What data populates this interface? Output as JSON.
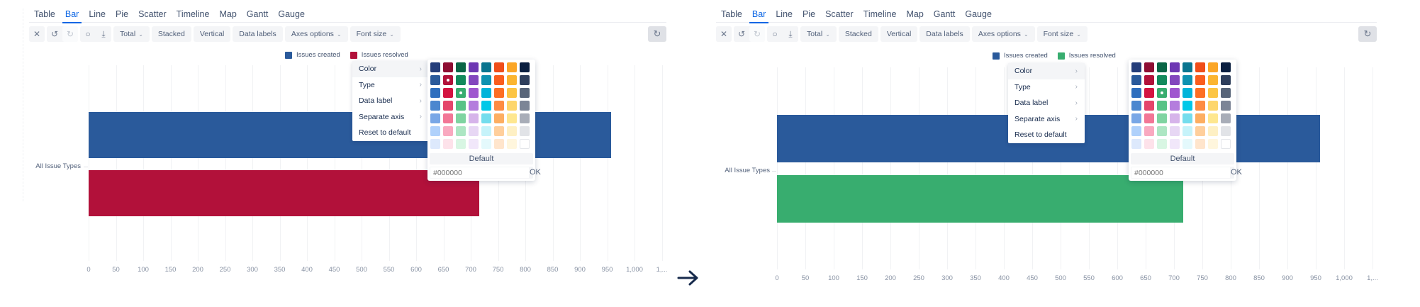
{
  "tabs": [
    "Table",
    "Bar",
    "Line",
    "Pie",
    "Scatter",
    "Timeline",
    "Map",
    "Gantt",
    "Gauge"
  ],
  "active_tab": "Bar",
  "toolbar": {
    "fullscreen_icon": "expand-icon",
    "undo_icon": "undo-icon",
    "redo_icon": "redo-icon",
    "comment_icon": "comment-icon",
    "download_icon": "download-icon",
    "total_label": "Total",
    "stacked_label": "Stacked",
    "vertical_label": "Vertical",
    "data_labels_label": "Data labels",
    "axes_options_label": "Axes options",
    "font_size_label": "Font size",
    "refresh_icon": "refresh-icon"
  },
  "context_menu": {
    "items": [
      {
        "label": "Color",
        "has_submenu": true
      },
      {
        "label": "Type",
        "has_submenu": true
      },
      {
        "label": "Data label",
        "has_submenu": true
      },
      {
        "label": "Separate axis",
        "has_submenu": true
      },
      {
        "label": "Reset to default",
        "has_submenu": false
      }
    ]
  },
  "color_picker": {
    "default_label": "Default",
    "hex_placeholder": "#000000",
    "ok_label": "OK",
    "palette": [
      [
        "#253e7a",
        "#8e0e33",
        "#0b6646",
        "#6e38b3",
        "#0a758f",
        "#f04e1a",
        "#fba627",
        "#0b1f40"
      ],
      [
        "#2a5a9b",
        "#b2113a",
        "#138a5c",
        "#8347be",
        "#0e92b1",
        "#fa5e1e",
        "#fbb530",
        "#2f3f5c"
      ],
      [
        "#2f6fbe",
        "#d31441",
        "#38ad6f",
        "#9f57cf",
        "#02b4da",
        "#fd6f24",
        "#fcc544",
        "#586579"
      ],
      [
        "#4b87cf",
        "#e4456b",
        "#58c386",
        "#b47ddd",
        "#00c8e8",
        "#fe8c42",
        "#fdd66c",
        "#7c8596"
      ],
      [
        "#79a7e6",
        "#f27696",
        "#7fd4a1",
        "#d6b4ea",
        "#74dded",
        "#fdae61",
        "#fee78f",
        "#a8adb8"
      ],
      [
        "#b0d1fb",
        "#f9a9c0",
        "#ade6c3",
        "#e7d7f4",
        "#c6f3fa",
        "#ffcf9c",
        "#fef0c4",
        "#e1e3e7"
      ],
      [
        "#dde9fc",
        "#fde2ea",
        "#d8f6e3",
        "#f1e7fa",
        "#e4f9fc",
        "#ffe5cc",
        "#fff6dd",
        "#ffffff"
      ]
    ]
  },
  "panels": [
    {
      "legend": [
        {
          "label": "Issues created",
          "color": "#2a5a9b"
        },
        {
          "label": "Issues resolved",
          "color": "#b2113a"
        }
      ],
      "selected_swatch": [
        1,
        1
      ],
      "hover_swatch": [
        2,
        2
      ]
    },
    {
      "legend": [
        {
          "label": "Issues created",
          "color": "#2a5a9b"
        },
        {
          "label": "Issues resolved",
          "color": "#38ad6f"
        }
      ],
      "selected_swatch": [
        2,
        2
      ],
      "hover_swatch": null
    }
  ],
  "transition_arrow_icon": "right-arrow-icon",
  "chart_data": [
    {
      "type": "bar",
      "orientation": "horizontal",
      "title": "",
      "categories": [
        "All Issue Types"
      ],
      "series": [
        {
          "name": "Issues created",
          "values": [
            957
          ],
          "color": "#2a5a9b"
        },
        {
          "name": "Issues resolved",
          "values": [
            716
          ],
          "color": "#b2113a"
        }
      ],
      "xlabel": "",
      "ylabel": "",
      "xlim": [
        0,
        1050
      ],
      "x_ticks": [
        "0",
        "50",
        "100",
        "150",
        "200",
        "250",
        "300",
        "350",
        "400",
        "450",
        "500",
        "550",
        "600",
        "650",
        "700",
        "750",
        "800",
        "850",
        "900",
        "950",
        "1,000",
        "1,..."
      ],
      "grid": true,
      "legend_position": "top"
    },
    {
      "type": "bar",
      "orientation": "horizontal",
      "title": "",
      "categories": [
        "All Issue Types"
      ],
      "series": [
        {
          "name": "Issues created",
          "values": [
            957
          ],
          "color": "#2a5a9b"
        },
        {
          "name": "Issues resolved",
          "values": [
            716
          ],
          "color": "#38ad6f"
        }
      ],
      "xlabel": "",
      "ylabel": "",
      "xlim": [
        0,
        1050
      ],
      "x_ticks": [
        "0",
        "50",
        "100",
        "150",
        "200",
        "250",
        "300",
        "350",
        "400",
        "450",
        "500",
        "550",
        "600",
        "650",
        "700",
        "750",
        "800",
        "850",
        "900",
        "950",
        "1,000",
        "1,..."
      ],
      "grid": true,
      "legend_position": "top"
    }
  ]
}
